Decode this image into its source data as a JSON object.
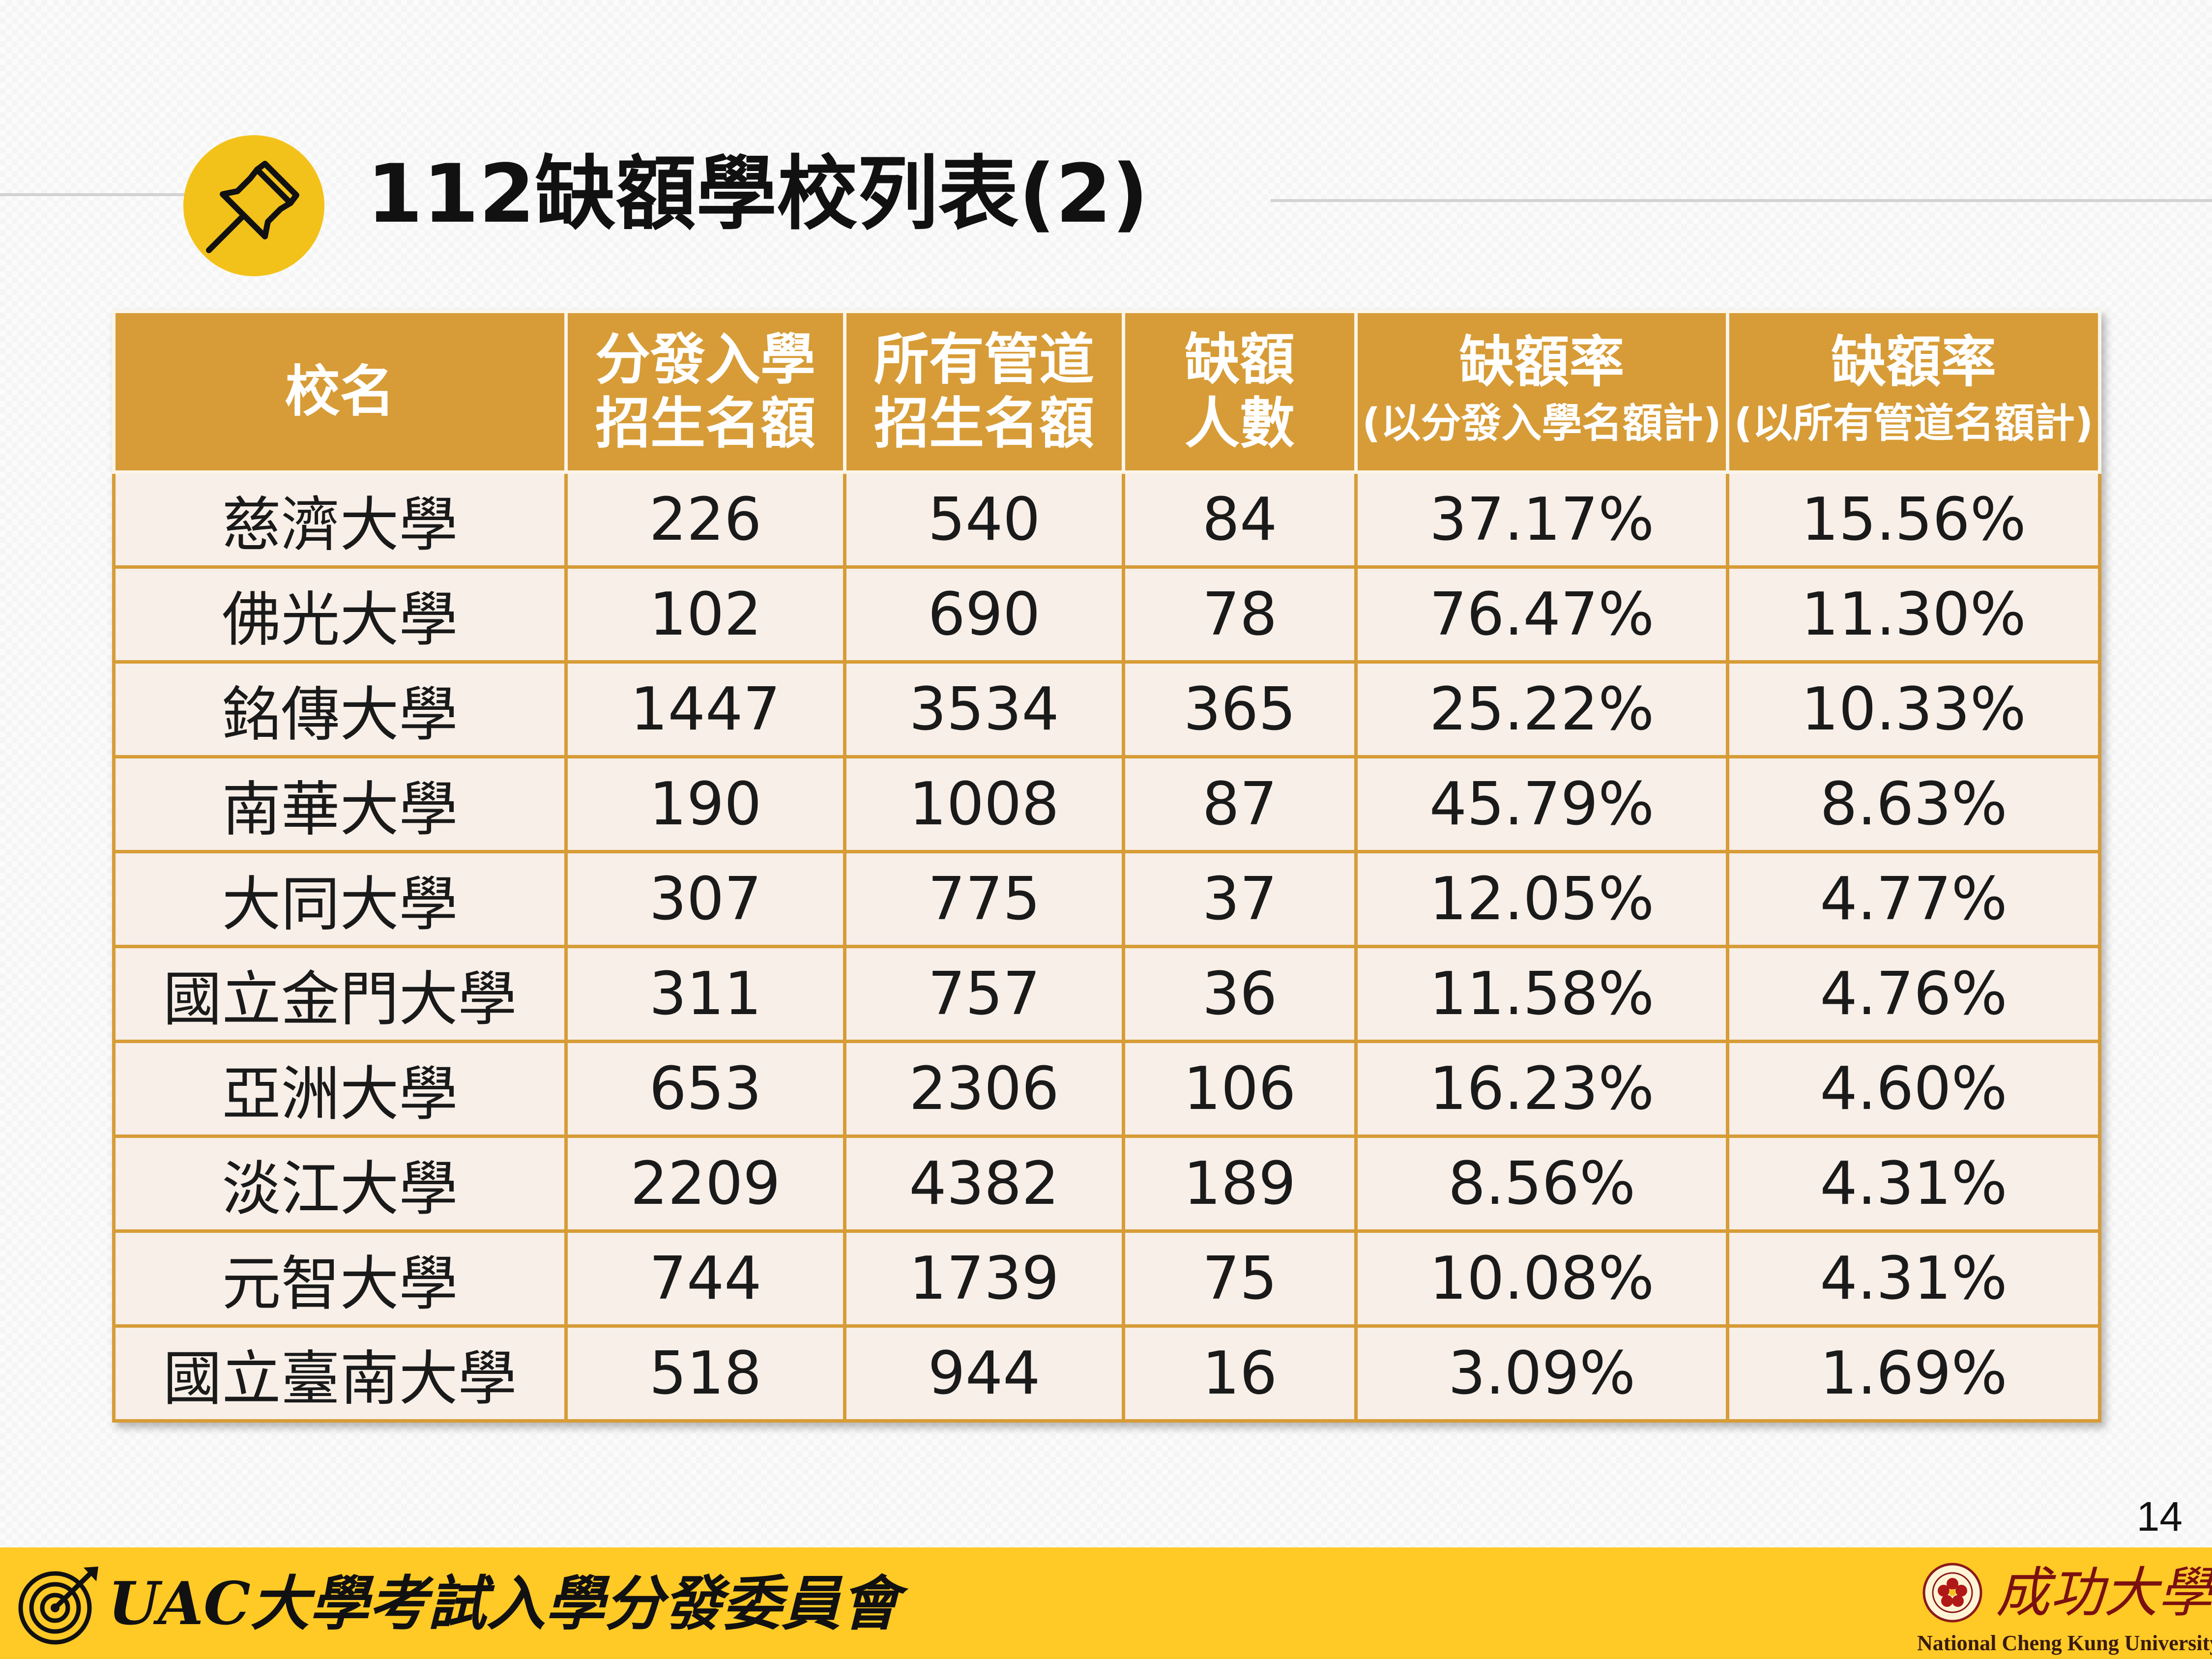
{
  "title": "112缺額學校列表(2)",
  "table": {
    "headers": [
      {
        "main": "校名",
        "sub": ""
      },
      {
        "main": "分發入學",
        "sub": "招生名額"
      },
      {
        "main": "所有管道",
        "sub": "招生名額"
      },
      {
        "main": "缺額",
        "sub": "人數"
      },
      {
        "main": "缺額率",
        "sub": "(以分發入學名額計)"
      },
      {
        "main": "缺額率",
        "sub": "(以所有管道名額計)"
      }
    ],
    "rows": [
      [
        "慈濟大學",
        "226",
        "540",
        "84",
        "37.17%",
        "15.56%"
      ],
      [
        "佛光大學",
        "102",
        "690",
        "78",
        "76.47%",
        "11.30%"
      ],
      [
        "銘傳大學",
        "1447",
        "3534",
        "365",
        "25.22%",
        "10.33%"
      ],
      [
        "南華大學",
        "190",
        "1008",
        "87",
        "45.79%",
        "8.63%"
      ],
      [
        "大同大學",
        "307",
        "775",
        "37",
        "12.05%",
        "4.77%"
      ],
      [
        "國立金門大學",
        "311",
        "757",
        "36",
        "11.58%",
        "4.76%"
      ],
      [
        "亞洲大學",
        "653",
        "2306",
        "106",
        "16.23%",
        "4.60%"
      ],
      [
        "淡江大學",
        "2209",
        "4382",
        "189",
        "8.56%",
        "4.31%"
      ],
      [
        "元智大學",
        "744",
        "1739",
        "75",
        "10.08%",
        "4.31%"
      ],
      [
        "國立臺南大學",
        "518",
        "944",
        "16",
        "3.09%",
        "1.69%"
      ]
    ]
  },
  "page_number": "14",
  "footer": {
    "brand": "UAC大學考試入學分發委員會",
    "university_name": "成功大學",
    "university_name_en": "National Cheng Kung University"
  },
  "icons": {
    "title_badge": "pushpin-icon",
    "footer_logo": "target-arrow-icon",
    "university_logo": "university-seal-icon"
  },
  "colors": {
    "header_bg": "#d79c37",
    "cell_bg": "#f7efe8",
    "badge_bg": "#f3c21a",
    "footer_bg": "#ffc926"
  }
}
